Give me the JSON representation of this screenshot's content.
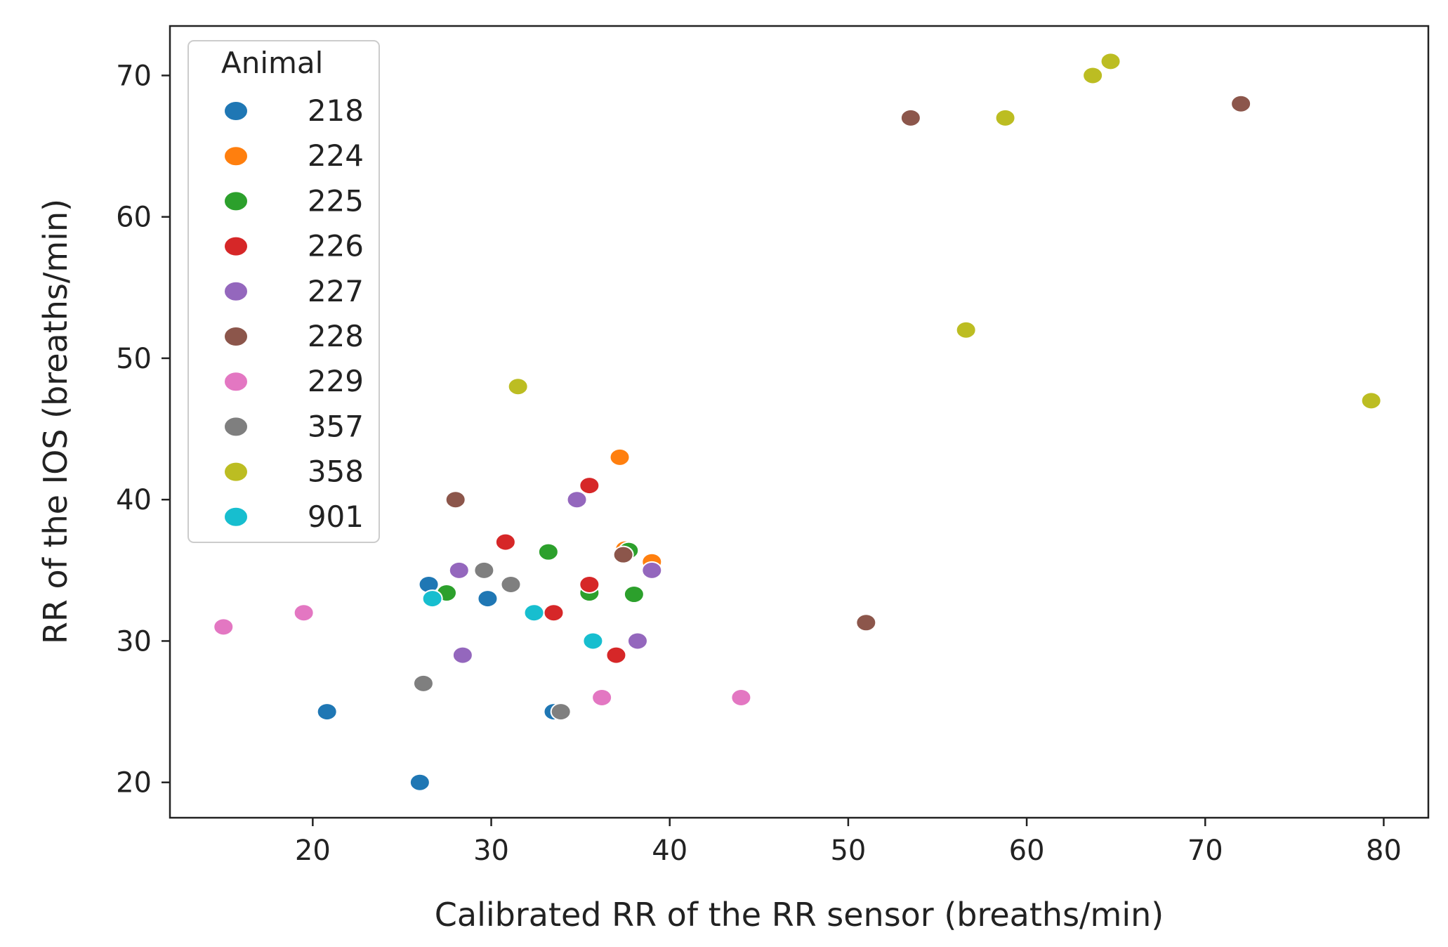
{
  "chart_data": {
    "type": "scatter",
    "title": "",
    "xlabel": "Calibrated RR of the RR sensor (breaths/min)",
    "ylabel": "RR of the IOS (breaths/min)",
    "xlim": [
      12,
      82.5
    ],
    "ylim": [
      17.5,
      73.5
    ],
    "xticks": [
      20,
      30,
      40,
      50,
      60,
      70,
      80
    ],
    "yticks": [
      20,
      30,
      40,
      50,
      60,
      70
    ],
    "grid": false,
    "legend": {
      "title": "Animal",
      "position": "top-left"
    },
    "series": [
      {
        "name": "218",
        "color": "#1f77b4",
        "points": [
          [
            20.8,
            25
          ],
          [
            26,
            20
          ],
          [
            26.5,
            34
          ],
          [
            29.8,
            33
          ],
          [
            33.5,
            25
          ]
        ]
      },
      {
        "name": "224",
        "color": "#ff7f0e",
        "points": [
          [
            37.2,
            43
          ],
          [
            37.5,
            36.5
          ],
          [
            39,
            35.6
          ]
        ]
      },
      {
        "name": "225",
        "color": "#2ca02c",
        "points": [
          [
            27.5,
            33.4
          ],
          [
            33.2,
            36.3
          ],
          [
            35.5,
            33.4
          ],
          [
            37.7,
            36.4
          ],
          [
            38,
            33.3
          ]
        ]
      },
      {
        "name": "226",
        "color": "#d62728",
        "points": [
          [
            30.8,
            37
          ],
          [
            33.5,
            32
          ],
          [
            35.5,
            41
          ],
          [
            35.5,
            34
          ],
          [
            37,
            29
          ]
        ]
      },
      {
        "name": "227",
        "color": "#9467bd",
        "points": [
          [
            28.2,
            35
          ],
          [
            28.4,
            29
          ],
          [
            34.8,
            40
          ],
          [
            38.2,
            30
          ],
          [
            39,
            35
          ]
        ]
      },
      {
        "name": "228",
        "color": "#8c564b",
        "points": [
          [
            28,
            40
          ],
          [
            37.4,
            36.1
          ],
          [
            51,
            31.3
          ],
          [
            53.5,
            67
          ],
          [
            72,
            68
          ]
        ]
      },
      {
        "name": "229",
        "color": "#e377c2",
        "points": [
          [
            15,
            31
          ],
          [
            19.5,
            32
          ],
          [
            36.2,
            26
          ],
          [
            44,
            26
          ]
        ]
      },
      {
        "name": "357",
        "color": "#7f7f7f",
        "points": [
          [
            26.2,
            27
          ],
          [
            29.6,
            35
          ],
          [
            31.1,
            34
          ],
          [
            33.9,
            25
          ]
        ]
      },
      {
        "name": "358",
        "color": "#bcbd22",
        "points": [
          [
            31.5,
            48
          ],
          [
            56.6,
            52
          ],
          [
            58.8,
            67
          ],
          [
            63.7,
            70
          ],
          [
            64.7,
            71
          ],
          [
            79.3,
            47
          ]
        ]
      },
      {
        "name": "901",
        "color": "#17becf",
        "points": [
          [
            26.7,
            33
          ],
          [
            32.4,
            32
          ],
          [
            35.7,
            30
          ]
        ]
      }
    ]
  }
}
